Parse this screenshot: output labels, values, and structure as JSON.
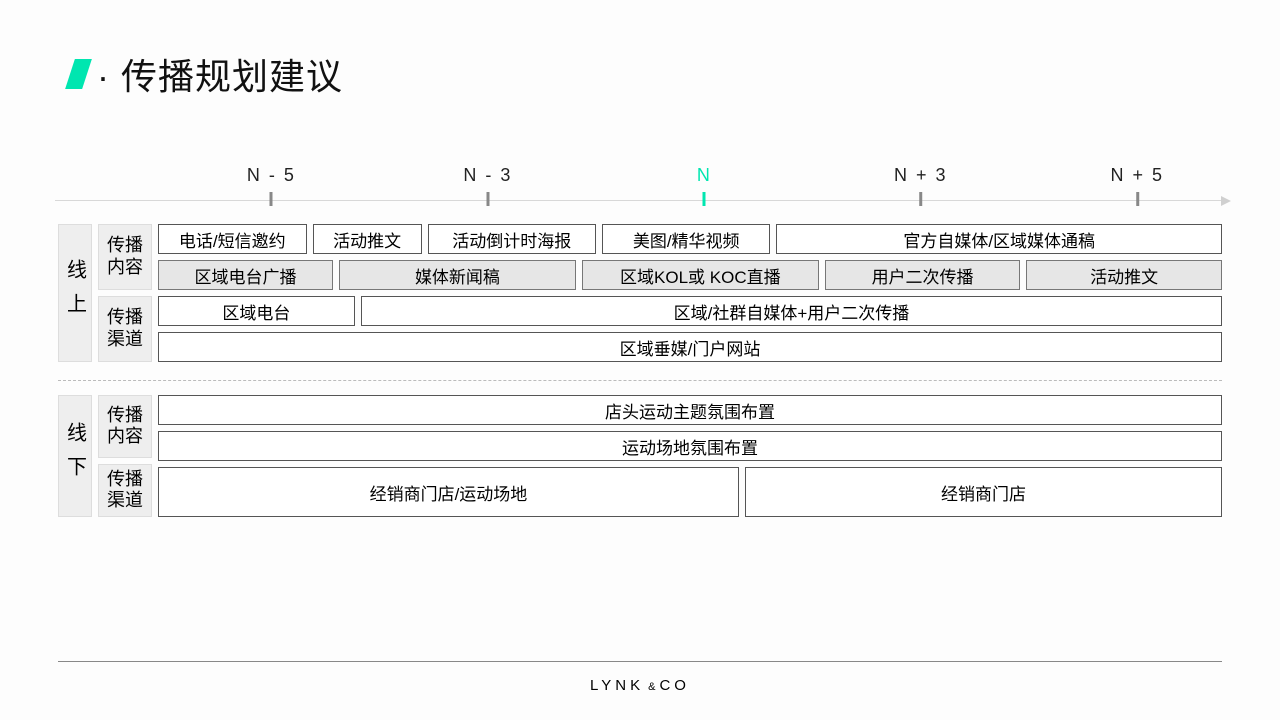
{
  "colors": {
    "accent": "#00e6b0",
    "grey_fill": "#e6e6e6",
    "label_fill": "#eeeeee",
    "border": "#555555",
    "axis": "#d8d8d8",
    "background": "#fdfdfd",
    "text": "#111111"
  },
  "title": "· 传播规划建议",
  "timeline": {
    "ticks": [
      {
        "label": "N - 5",
        "pos_pct": 18.5,
        "accent": false
      },
      {
        "label": "N - 3",
        "pos_pct": 37.0,
        "accent": false
      },
      {
        "label": "N",
        "pos_pct": 55.5,
        "accent": true
      },
      {
        "label": "N + 3",
        "pos_pct": 74.0,
        "accent": false
      },
      {
        "label": "N + 5",
        "pos_pct": 92.5,
        "accent": false
      }
    ]
  },
  "sections": [
    {
      "id": "online",
      "label": "线上",
      "label_height_rows": 4,
      "sublabels": [
        "传播内容",
        "传播渠道"
      ],
      "rows": [
        {
          "height": "normal",
          "cells": [
            {
              "text": "电话/短信邀约",
              "flex": 14,
              "style": "white"
            },
            {
              "text": "活动推文",
              "flex": 10,
              "style": "white"
            },
            {
              "text": "活动倒计时海报",
              "flex": 16,
              "style": "white"
            },
            {
              "text": "美图/精华视频",
              "flex": 16,
              "style": "white"
            },
            {
              "text": "官方自媒体/区域媒体通稿",
              "flex": 44,
              "style": "white"
            }
          ]
        },
        {
          "height": "normal",
          "cells": [
            {
              "text": "区域电台广播",
              "flex": 16,
              "style": "grey"
            },
            {
              "text": "媒体新闻稿",
              "flex": 22,
              "style": "grey"
            },
            {
              "text": "区域KOL或 KOC直播",
              "flex": 22,
              "style": "grey"
            },
            {
              "text": "用户二次传播",
              "flex": 18,
              "style": "grey"
            },
            {
              "text": "活动推文",
              "flex": 18,
              "style": "grey"
            }
          ]
        },
        {
          "height": "normal",
          "cells": [
            {
              "text": "区域电台",
              "flex": 18,
              "style": "white"
            },
            {
              "text": "区域/社群自媒体+用户二次传播",
              "flex": 82,
              "style": "white"
            }
          ]
        },
        {
          "height": "normal",
          "cells": [
            {
              "text": "区域垂媒/门户网站",
              "flex": 100,
              "style": "white"
            }
          ]
        }
      ]
    },
    {
      "id": "offline",
      "label": "线下",
      "label_height_rows": 3,
      "sublabels": [
        "传播内容",
        "传播渠道"
      ],
      "rows": [
        {
          "height": "normal",
          "cells": [
            {
              "text": "店头运动主题氛围布置",
              "flex": 100,
              "style": "white"
            }
          ]
        },
        {
          "height": "normal",
          "cells": [
            {
              "text": "运动场地氛围布置",
              "flex": 55,
              "style": "white"
            }
          ]
        },
        {
          "height": "tall",
          "cells": [
            {
              "text": "经销商门店/运动场地",
              "flex": 55,
              "style": "white"
            },
            {
              "text": "经销商门店",
              "flex": 45,
              "style": "white"
            }
          ]
        }
      ]
    }
  ],
  "logo": {
    "left": "LYNK",
    "amp": "&",
    "right": "CO"
  }
}
